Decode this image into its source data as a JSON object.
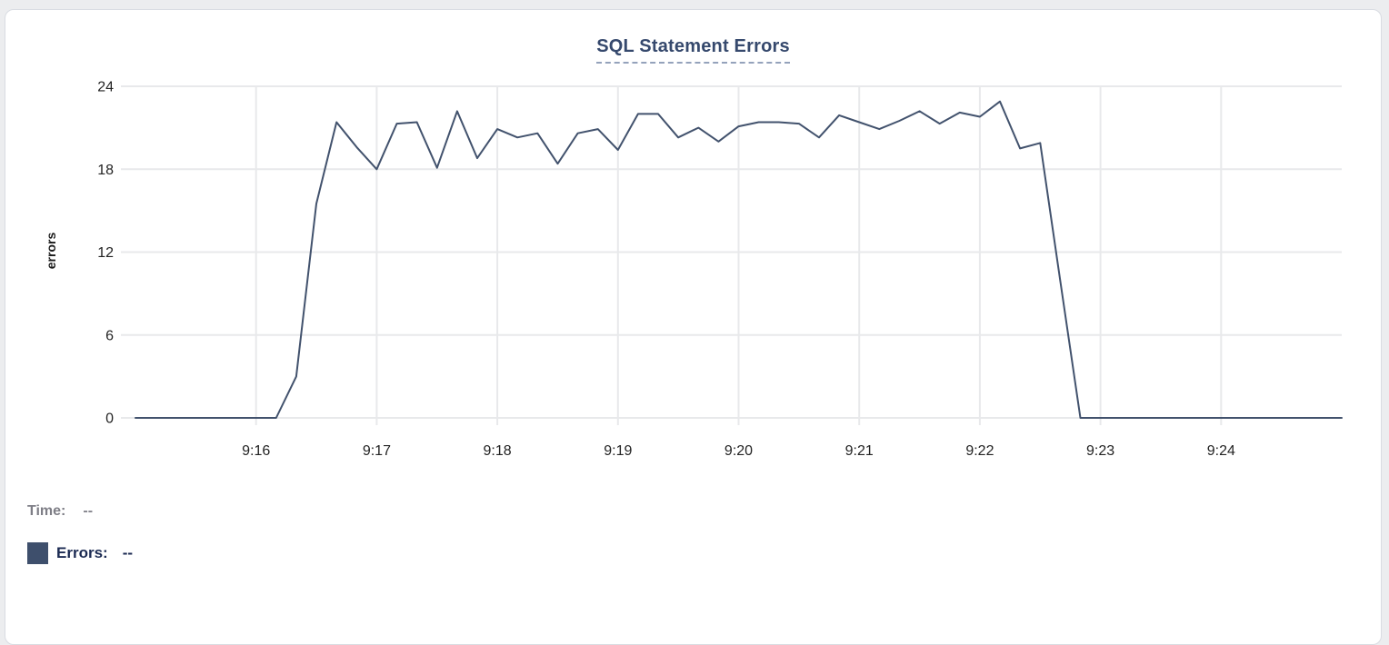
{
  "page": {
    "background": "#ecedef"
  },
  "card": {
    "background": "#ffffff",
    "border_color": "#d9dce2"
  },
  "chart_data": {
    "type": "line",
    "title": "SQL Statement Errors",
    "xlabel": "",
    "ylabel": "errors",
    "ylim": [
      0,
      24
    ],
    "y_ticks": [
      0,
      6,
      12,
      18,
      24
    ],
    "x_domain_s": [
      0,
      600
    ],
    "x_ticks": [
      {
        "pos": 60,
        "label": "9:16"
      },
      {
        "pos": 120,
        "label": "9:17"
      },
      {
        "pos": 180,
        "label": "9:18"
      },
      {
        "pos": 240,
        "label": "9:19"
      },
      {
        "pos": 300,
        "label": "9:20"
      },
      {
        "pos": 360,
        "label": "9:21"
      },
      {
        "pos": 420,
        "label": "9:22"
      },
      {
        "pos": 480,
        "label": "9:23"
      },
      {
        "pos": 540,
        "label": "9:24"
      }
    ],
    "grid": true,
    "legend_position": "bottom-left",
    "series": [
      {
        "name": "Errors",
        "color": "#42526d",
        "x_step_s": 10,
        "values": [
          0,
          0,
          0,
          0,
          0,
          0,
          0,
          0,
          3,
          15.5,
          21.4,
          19.6,
          18,
          21.3,
          21.4,
          18.1,
          22.2,
          18.8,
          20.9,
          20.3,
          20.6,
          18.4,
          20.6,
          20.9,
          19.4,
          22,
          22,
          20.3,
          21,
          20,
          21.1,
          21.4,
          21.4,
          21.3,
          20.3,
          21.9,
          21.4,
          20.9,
          21.5,
          22.2,
          21.3,
          22.1,
          21.8,
          22.9,
          19.5,
          19.9,
          9.9,
          0,
          0,
          0,
          0,
          0,
          0,
          0,
          0,
          0,
          0,
          0,
          0,
          0,
          0
        ]
      }
    ],
    "colors": {
      "grid": "#e8e9eb",
      "tick_text": "#232323",
      "title_text": "#36496d"
    }
  },
  "readout": {
    "time_label": "Time:",
    "time_value": "--",
    "errors_label": "Errors:",
    "errors_value": "--",
    "swatch_color": "#3e4f6c"
  }
}
